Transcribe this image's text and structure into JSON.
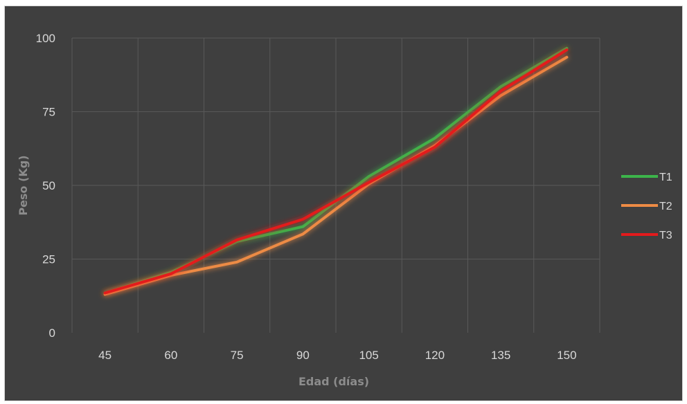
{
  "chart_data": {
    "type": "line",
    "title": "",
    "xlabel": "Edad (días)",
    "ylabel": "Peso (Kg)",
    "categories": [
      "45",
      "60",
      "75",
      "90",
      "105",
      "120",
      "135",
      "150"
    ],
    "ylim": [
      0,
      100
    ],
    "yticks": [
      0,
      25,
      50,
      75,
      100
    ],
    "grid": true,
    "legend_position": "right",
    "series": [
      {
        "name": "T1",
        "color": "#3cb44b",
        "values": [
          13.5,
          20.5,
          31.0,
          36.0,
          53.0,
          66.0,
          83.5,
          96.5
        ]
      },
      {
        "name": "T2",
        "color": "#ed8b45",
        "values": [
          13.0,
          19.5,
          24.0,
          33.5,
          50.5,
          63.5,
          80.5,
          93.5
        ]
      },
      {
        "name": "T3",
        "color": "#e31a1c",
        "values": [
          13.5,
          20.0,
          31.5,
          38.5,
          51.0,
          63.0,
          82.0,
          96.0
        ]
      }
    ]
  }
}
